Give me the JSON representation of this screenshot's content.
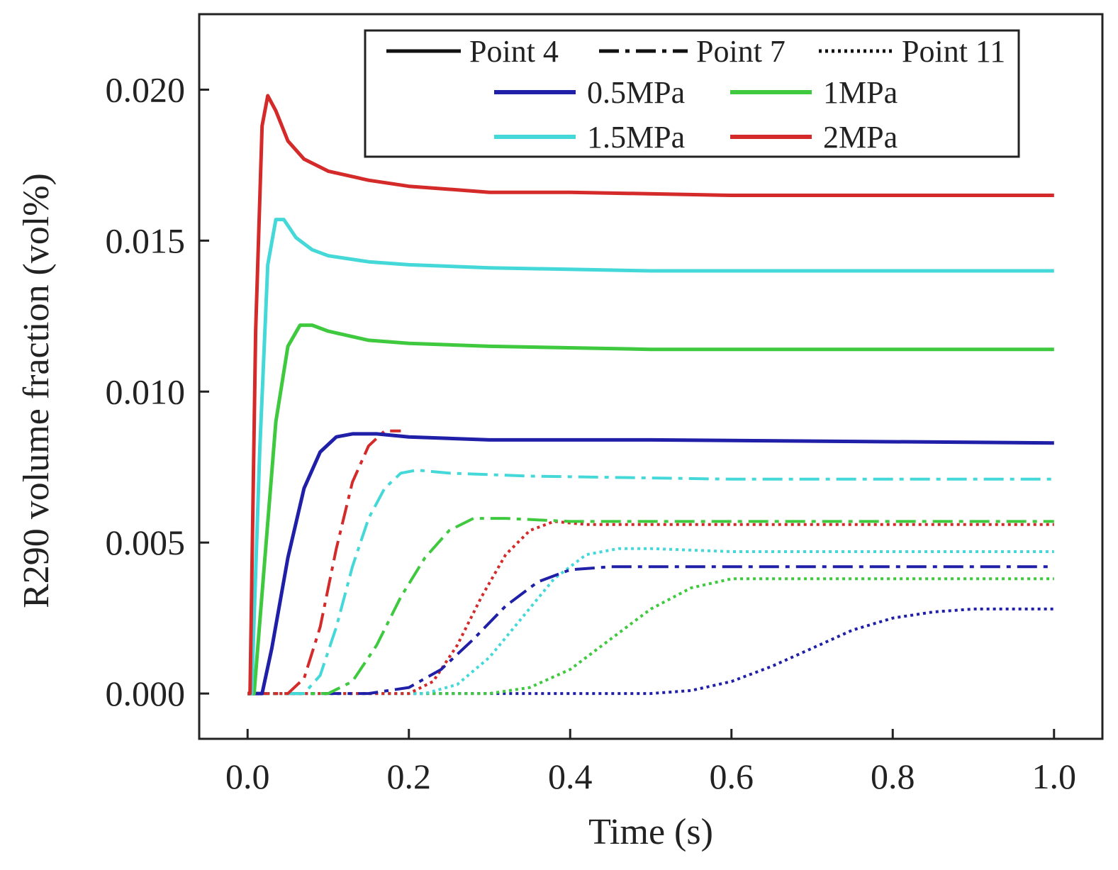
{
  "chart_data": {
    "type": "line",
    "title": "",
    "xlabel": "Time (s)",
    "ylabel": "R290 volume fraction (vol%)",
    "xlim": [
      -0.06,
      1.06
    ],
    "ylim": [
      -0.0015,
      0.0225
    ],
    "xticks": [
      0.0,
      0.2,
      0.4,
      0.6,
      0.8,
      1.0
    ],
    "xtick_labels": [
      "0.0",
      "0.2",
      "0.4",
      "0.6",
      "0.8",
      "1.0"
    ],
    "yticks": [
      0.0,
      0.005,
      0.01,
      0.015,
      0.02
    ],
    "ytick_labels": [
      "0.000",
      "0.005",
      "0.010",
      "0.015",
      "0.020"
    ],
    "grid": false,
    "legend": {
      "placement": "top-right",
      "styles": [
        {
          "label": "Point 4",
          "dash": "solid"
        },
        {
          "label": "Point 7",
          "dash": "dashdot"
        },
        {
          "label": "Point 11",
          "dash": "dotted"
        }
      ],
      "pressures": [
        {
          "label": "0.5MPa",
          "color": "#1f1fa8"
        },
        {
          "label": "1MPa",
          "color": "#3ec93e"
        },
        {
          "label": "1.5MPa",
          "color": "#45d8d8"
        },
        {
          "label": "2MPa",
          "color": "#d42a2a"
        }
      ]
    },
    "series": [
      {
        "name": "Point 4 - 0.5MPa",
        "dash": "solid",
        "color": "#1f1fa8",
        "x": [
          0,
          0.018,
          0.03,
          0.05,
          0.07,
          0.09,
          0.11,
          0.13,
          0.16,
          0.2,
          0.3,
          0.5,
          1.0
        ],
        "y": [
          0,
          0,
          0.0015,
          0.0045,
          0.0068,
          0.008,
          0.0085,
          0.0086,
          0.0086,
          0.0085,
          0.0084,
          0.0084,
          0.0083
        ]
      },
      {
        "name": "Point 4 - 1MPa",
        "dash": "solid",
        "color": "#3ec93e",
        "x": [
          0,
          0.008,
          0.02,
          0.035,
          0.05,
          0.065,
          0.08,
          0.1,
          0.15,
          0.2,
          0.3,
          0.5,
          1.0
        ],
        "y": [
          0,
          0,
          0.004,
          0.009,
          0.0115,
          0.0122,
          0.0122,
          0.012,
          0.0117,
          0.0116,
          0.0115,
          0.0114,
          0.0114
        ]
      },
      {
        "name": "Point 4 - 1.5MPa",
        "dash": "solid",
        "color": "#45d8d8",
        "x": [
          0,
          0.005,
          0.015,
          0.025,
          0.035,
          0.045,
          0.06,
          0.08,
          0.1,
          0.15,
          0.2,
          0.3,
          0.5,
          1.0
        ],
        "y": [
          0,
          0,
          0.008,
          0.0142,
          0.0157,
          0.0157,
          0.0151,
          0.0147,
          0.0145,
          0.0143,
          0.0142,
          0.0141,
          0.014,
          0.014
        ]
      },
      {
        "name": "Point 4 - 2MPa",
        "dash": "solid",
        "color": "#d42a2a",
        "x": [
          0,
          0.003,
          0.01,
          0.018,
          0.025,
          0.035,
          0.05,
          0.07,
          0.1,
          0.15,
          0.2,
          0.3,
          0.4,
          0.6,
          1.0
        ],
        "y": [
          0,
          0,
          0.012,
          0.0188,
          0.0198,
          0.0193,
          0.0183,
          0.0177,
          0.0173,
          0.017,
          0.0168,
          0.0166,
          0.0166,
          0.0165,
          0.0165
        ]
      },
      {
        "name": "Point 7 - 0.5MPa",
        "dash": "dashdot",
        "color": "#1f1fa8",
        "x": [
          0,
          0.15,
          0.2,
          0.24,
          0.28,
          0.32,
          0.36,
          0.4,
          0.45,
          0.5,
          0.6,
          1.0
        ],
        "y": [
          0,
          0,
          0.0002,
          0.0008,
          0.0018,
          0.0029,
          0.0037,
          0.0041,
          0.0042,
          0.0042,
          0.0042,
          0.0042
        ]
      },
      {
        "name": "Point 7 - 1MPa",
        "dash": "dashdot",
        "color": "#3ec93e",
        "x": [
          0,
          0.1,
          0.13,
          0.16,
          0.19,
          0.22,
          0.25,
          0.28,
          0.32,
          0.4,
          0.6,
          1.0
        ],
        "y": [
          0,
          0,
          0.0004,
          0.0016,
          0.0032,
          0.0045,
          0.0054,
          0.0058,
          0.0058,
          0.0057,
          0.0057,
          0.0057
        ]
      },
      {
        "name": "Point 7 - 1.5MPa",
        "dash": "dashdot",
        "color": "#45d8d8",
        "x": [
          0,
          0.07,
          0.09,
          0.11,
          0.13,
          0.15,
          0.17,
          0.19,
          0.21,
          0.25,
          0.35,
          0.6,
          1.0
        ],
        "y": [
          0,
          0,
          0.0006,
          0.0022,
          0.0042,
          0.0058,
          0.0068,
          0.0073,
          0.0074,
          0.0073,
          0.0072,
          0.0071,
          0.0071
        ]
      },
      {
        "name": "Point 7 - 2MPa",
        "dash": "dashdot",
        "color": "#d42a2a",
        "x": [
          0,
          0.05,
          0.07,
          0.09,
          0.11,
          0.13,
          0.15,
          0.17,
          0.19
        ],
        "y": [
          0,
          0,
          0.0005,
          0.0022,
          0.0048,
          0.007,
          0.0082,
          0.0087,
          0.0087
        ]
      },
      {
        "name": "Point 11 - 0.5MPa",
        "dash": "dotted",
        "color": "#1f1fa8",
        "x": [
          0,
          0.5,
          0.55,
          0.6,
          0.65,
          0.7,
          0.75,
          0.8,
          0.85,
          0.9,
          0.95,
          1.0
        ],
        "y": [
          0,
          0,
          0.0001,
          0.0004,
          0.0009,
          0.0015,
          0.0021,
          0.0025,
          0.0027,
          0.0028,
          0.0028,
          0.0028
        ]
      },
      {
        "name": "Point 11 - 1MPa",
        "dash": "dotted",
        "color": "#3ec93e",
        "x": [
          0,
          0.3,
          0.35,
          0.4,
          0.45,
          0.5,
          0.55,
          0.6,
          0.65,
          0.7,
          0.8,
          1.0
        ],
        "y": [
          0,
          0,
          0.0002,
          0.0008,
          0.0018,
          0.0028,
          0.0035,
          0.0038,
          0.0038,
          0.0038,
          0.0038,
          0.0038
        ]
      },
      {
        "name": "Point 11 - 1.5MPa",
        "dash": "dotted",
        "color": "#45d8d8",
        "x": [
          0,
          0.22,
          0.26,
          0.3,
          0.34,
          0.38,
          0.42,
          0.46,
          0.5,
          0.6,
          0.8,
          1.0
        ],
        "y": [
          0,
          0,
          0.0003,
          0.0012,
          0.0025,
          0.0038,
          0.0046,
          0.0048,
          0.0048,
          0.0047,
          0.0047,
          0.0047
        ]
      },
      {
        "name": "Point 11 - 2MPa",
        "dash": "dotted",
        "color": "#d42a2a",
        "x": [
          0,
          0.2,
          0.23,
          0.26,
          0.29,
          0.32,
          0.35,
          0.38,
          0.42,
          0.5,
          0.7,
          1.0
        ],
        "y": [
          0,
          0,
          0.0004,
          0.0016,
          0.0032,
          0.0046,
          0.0054,
          0.0057,
          0.0056,
          0.0056,
          0.0056,
          0.0056
        ]
      }
    ]
  }
}
